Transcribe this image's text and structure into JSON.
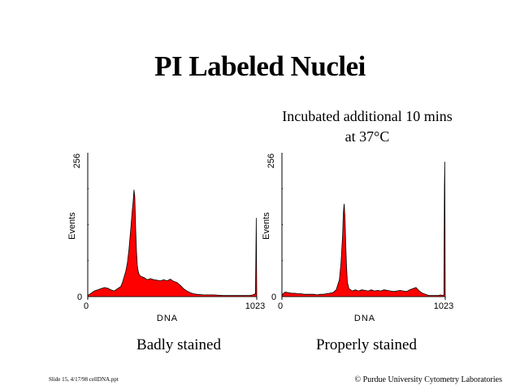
{
  "slide": {
    "title": "PI Labeled Nuclei",
    "subtitle_line1": "Incubated additional 10 mins",
    "subtitle_line2": "at 37°C",
    "footer_left": "Slide 15, 4/17/98 cellDNA.ppt",
    "footer_right": "© Purdue University Cytometry Laboratories"
  },
  "colors": {
    "fill": "#ff0000",
    "outline": "#000000",
    "axis": "#000000"
  },
  "chart_data": [
    {
      "type": "area",
      "caption": "Badly stained",
      "xlabel": "DNA",
      "ylabel": "Events",
      "xlim": [
        0,
        1023
      ],
      "ylim": [
        0,
        256
      ],
      "x_tick_labels": [
        "0",
        "1023"
      ],
      "y_tick_labels": [
        "0",
        "256"
      ],
      "y_gridline_values": [
        64,
        128,
        192
      ],
      "series": [
        {
          "x": [
            0,
            20,
            40,
            60,
            80,
            100,
            120,
            140,
            160,
            180,
            200,
            210,
            220,
            230,
            240,
            250,
            260,
            270,
            275,
            280,
            285,
            290,
            295,
            300,
            305,
            310,
            320,
            340,
            360,
            380,
            400,
            420,
            440,
            460,
            480,
            500,
            520,
            540,
            560,
            580,
            600,
            620,
            640,
            660,
            700,
            760,
            820,
            880,
            940,
            980,
            1000,
            1015,
            1018,
            1020,
            1023
          ],
          "y": [
            2,
            6,
            10,
            12,
            14,
            16,
            15,
            12,
            10,
            14,
            18,
            25,
            35,
            45,
            60,
            85,
            120,
            155,
            170,
            190,
            178,
            120,
            80,
            55,
            46,
            40,
            36,
            34,
            30,
            32,
            30,
            29,
            28,
            30,
            28,
            31,
            27,
            25,
            20,
            14,
            10,
            7,
            5,
            4,
            3,
            3,
            2,
            2,
            2,
            2,
            3,
            5,
            80,
            140,
            0
          ]
        }
      ]
    },
    {
      "type": "area",
      "caption": "Properly stained",
      "xlabel": "DNA",
      "ylabel": "Events",
      "xlim": [
        0,
        1023
      ],
      "ylim": [
        0,
        256
      ],
      "x_tick_labels": [
        "0",
        "1023"
      ],
      "y_tick_labels": [
        "0",
        "256"
      ],
      "y_gridline_values": [
        64,
        128,
        192
      ],
      "series": [
        {
          "x": [
            0,
            10,
            20,
            40,
            60,
            80,
            100,
            120,
            140,
            160,
            180,
            200,
            220,
            240,
            260,
            280,
            300,
            320,
            340,
            360,
            370,
            380,
            385,
            390,
            395,
            400,
            405,
            410,
            420,
            430,
            440,
            460,
            480,
            500,
            520,
            540,
            560,
            580,
            600,
            620,
            640,
            660,
            680,
            700,
            720,
            740,
            760,
            780,
            800,
            820,
            840,
            860,
            880,
            900,
            920,
            940,
            960,
            980,
            995,
            1005,
            1015,
            1018,
            1020,
            1023
          ],
          "y": [
            2,
            6,
            8,
            7,
            6,
            6,
            5,
            5,
            4,
            4,
            4,
            4,
            3,
            4,
            4,
            5,
            6,
            7,
            12,
            30,
            60,
            110,
            150,
            165,
            140,
            90,
            50,
            25,
            14,
            12,
            10,
            12,
            10,
            12,
            11,
            10,
            12,
            10,
            11,
            10,
            12,
            11,
            10,
            9,
            10,
            11,
            10,
            9,
            12,
            14,
            16,
            10,
            6,
            4,
            2,
            2,
            2,
            2,
            3,
            2,
            3,
            200,
            240,
            0
          ]
        }
      ]
    }
  ]
}
